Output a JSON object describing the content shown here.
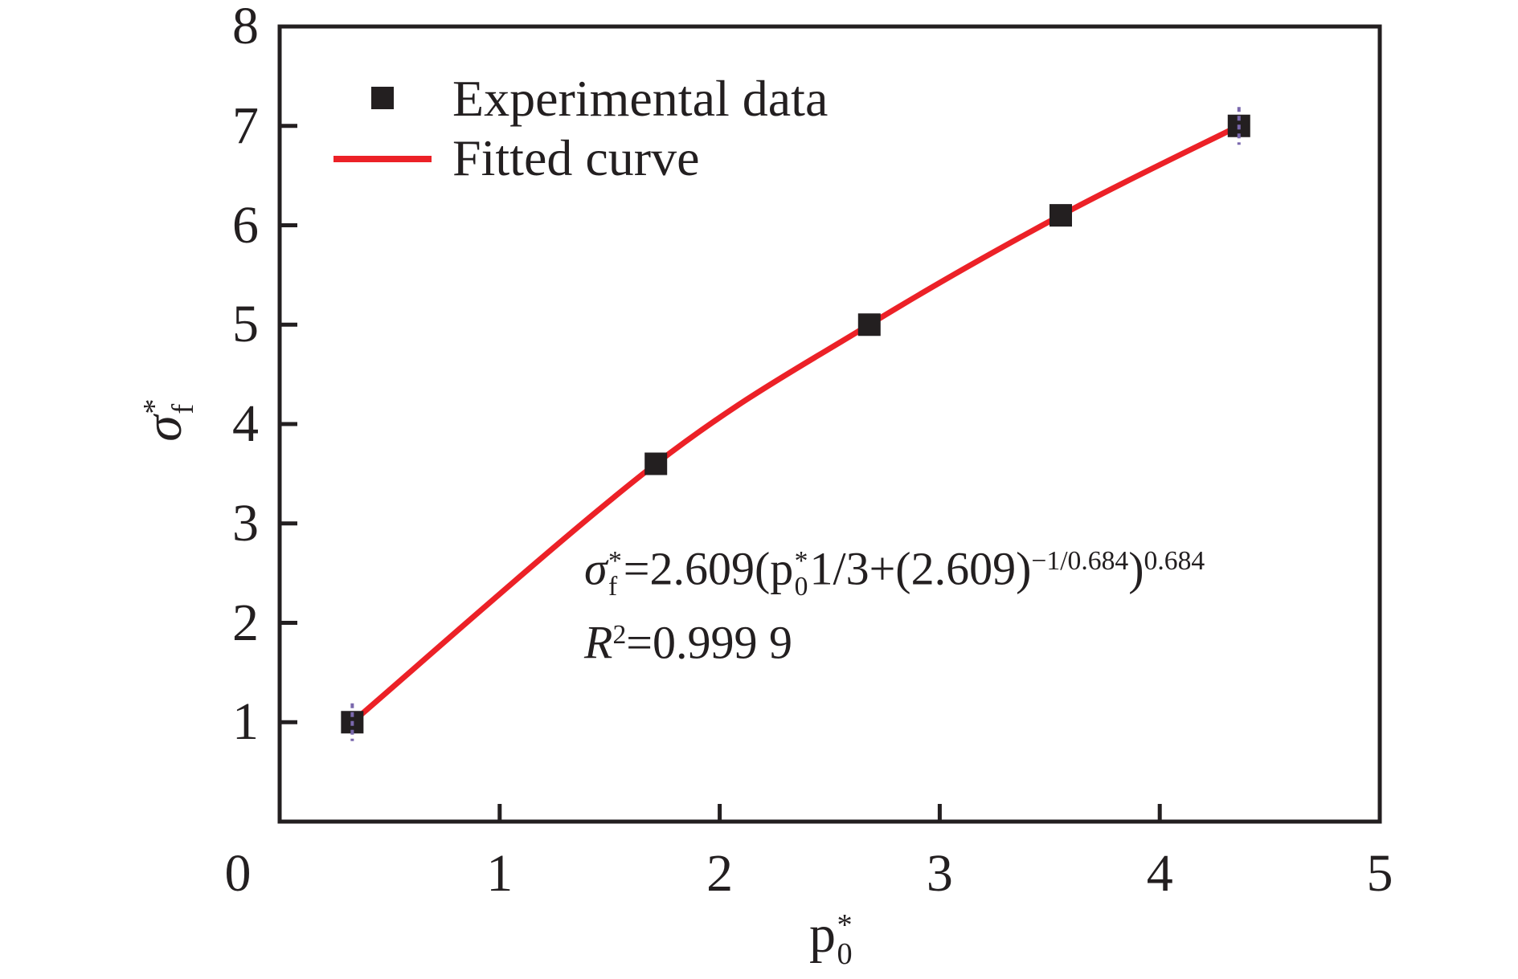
{
  "figure": {
    "background": "#ffffff",
    "ink_color": "#231f20"
  },
  "legend": {
    "position": "top-left-inside",
    "items": [
      {
        "label": "Experimental data",
        "marker": "filled-square",
        "color": "#231f20"
      },
      {
        "label": "Fitted curve",
        "marker": "line",
        "color": "#ec2127"
      }
    ]
  },
  "annotation": {
    "eq_sigma": "σ",
    "eq_sigma_sup": "*",
    "eq_sigma_sub": "f",
    "eq_mid1": "=2.609(p",
    "eq_p_sup": "*",
    "eq_p_sub": "0",
    "eq_mid2": "1/3+(2.609)",
    "eq_exp1": "−1/0.684",
    "eq_close": ")",
    "eq_exp2": "0.684",
    "r2_base": "R",
    "r2_exp": "2",
    "r2_value": "=0.999 9"
  },
  "axes": {
    "x": {
      "base": "p",
      "sup": "*",
      "sub": "0"
    },
    "y": {
      "base": "σ",
      "sup": "*",
      "sub": "f"
    }
  },
  "chart_data": {
    "type": "scatter",
    "title": "",
    "xlabel": "p*0",
    "ylabel": "σ*f",
    "xlim": [
      0,
      5
    ],
    "ylim": [
      0,
      8
    ],
    "x_ticks": [
      0,
      1,
      2,
      3,
      4,
      5
    ],
    "y_ticks": [
      1,
      2,
      3,
      4,
      5,
      6,
      7,
      8
    ],
    "grid": false,
    "legend_position": "top-left-inside",
    "series": [
      {
        "name": "Experimental data",
        "type": "scatter",
        "marker": "filled-square",
        "color": "#231f20",
        "points": [
          [
            0.33,
            1.0
          ],
          [
            1.71,
            3.6
          ],
          [
            2.68,
            5.0
          ],
          [
            3.55,
            6.1
          ],
          [
            4.36,
            7.0
          ]
        ],
        "y_error_half": 0.19,
        "error_bar_color": "#7a68ad",
        "error_bars_visible_at_indices": [
          0,
          4
        ]
      },
      {
        "name": "Fitted curve",
        "type": "line",
        "color": "#ec2127",
        "x_range": [
          0.33,
          4.36
        ],
        "equation": "σ*f=2.609(p*0 1/3+(2.609)^(−1/0.684))^0.684",
        "r_squared": "0.999 9"
      }
    ]
  }
}
